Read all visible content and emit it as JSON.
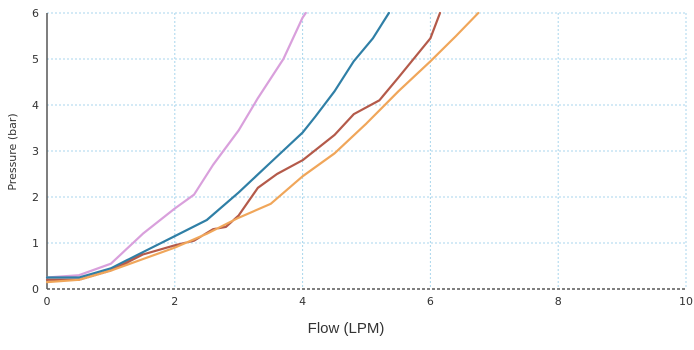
{
  "chart_data": {
    "type": "line",
    "xlabel": "Flow (LPM)",
    "ylabel": "Pressure (bar)",
    "xlim": [
      0,
      10
    ],
    "ylim": [
      0,
      6
    ],
    "xticks": [
      0,
      2,
      4,
      6,
      8,
      10
    ],
    "yticks": [
      0,
      1,
      2,
      3,
      4,
      5,
      6
    ],
    "grid": true,
    "legend": "none",
    "series": [
      {
        "color": "#d9a0dc",
        "x": [
          0,
          0.5,
          1.0,
          1.5,
          2.0,
          2.3,
          2.6,
          3.0,
          3.3,
          3.7,
          4.0,
          4.05
        ],
        "y": [
          0.25,
          0.3,
          0.55,
          1.2,
          1.75,
          2.05,
          2.7,
          3.45,
          4.15,
          5.0,
          5.9,
          6.0
        ]
      },
      {
        "color": "#2f7fa6",
        "x": [
          0,
          0.5,
          1.0,
          1.5,
          2.0,
          2.5,
          3.0,
          3.5,
          4.0,
          4.2,
          4.5,
          4.8,
          5.1,
          5.35
        ],
        "y": [
          0.25,
          0.25,
          0.45,
          0.8,
          1.15,
          1.5,
          2.1,
          2.75,
          3.4,
          3.75,
          4.3,
          4.95,
          5.45,
          6.0
        ]
      },
      {
        "color": "#b45a4a",
        "x": [
          0,
          0.5,
          1.0,
          1.5,
          2.0,
          2.3,
          2.6,
          2.8,
          3.0,
          3.3,
          3.6,
          4.0,
          4.5,
          4.8,
          5.2,
          5.5,
          6.0,
          6.15
        ],
        "y": [
          0.2,
          0.2,
          0.4,
          0.75,
          0.95,
          1.05,
          1.3,
          1.35,
          1.6,
          2.2,
          2.5,
          2.8,
          3.35,
          3.8,
          4.1,
          4.6,
          5.45,
          6.0
        ]
      },
      {
        "color": "#f0a65a",
        "x": [
          0,
          0.5,
          1.0,
          1.5,
          2.0,
          2.5,
          3.0,
          3.5,
          4.0,
          4.5,
          5.0,
          5.5,
          6.0,
          6.4,
          6.75
        ],
        "y": [
          0.15,
          0.2,
          0.4,
          0.65,
          0.9,
          1.2,
          1.55,
          1.85,
          2.45,
          2.95,
          3.6,
          4.3,
          4.95,
          5.5,
          6.0
        ]
      }
    ]
  }
}
